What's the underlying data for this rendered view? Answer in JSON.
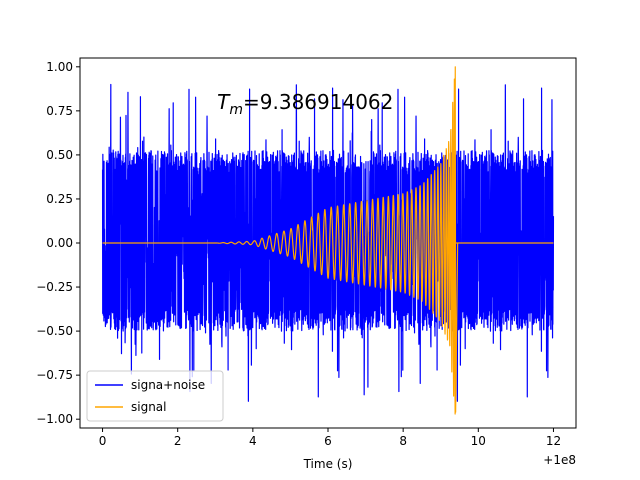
{
  "chart_data": {
    "type": "line",
    "title": "",
    "xlabel": "Time (s)",
    "ylabel": "",
    "x_offset_label": "+1e8",
    "xlim": [
      -0.6,
      12.6
    ],
    "ylim": [
      -1.05,
      1.05
    ],
    "x_ticks": [
      0,
      2,
      4,
      6,
      8,
      10,
      12
    ],
    "x_tick_labels": [
      "0",
      "2",
      "4",
      "6",
      "8",
      "10",
      "12"
    ],
    "y_ticks": [
      1.0,
      0.75,
      0.5,
      0.25,
      0.0,
      -0.25,
      -0.5,
      -0.75,
      -1.0
    ],
    "y_tick_labels": [
      "1.00",
      "0.75",
      "0.50",
      "0.25",
      "0.00",
      "−0.25",
      "−0.50",
      "−0.75",
      "−1.00"
    ],
    "annotation": {
      "prefix": "T",
      "subscript": "m",
      "value_text": "=9.386914062",
      "x": 3.05,
      "y": 0.8
    },
    "legend": {
      "placement": "lower-left"
    },
    "series": [
      {
        "name": "signa+noise",
        "color": "#0000ff",
        "x_range": [
          0,
          12
        ],
        "samples": 3000,
        "noise_envelope": 0.5,
        "noise_peak": 0.9
      },
      {
        "name": "signal",
        "color": "#ffa500",
        "x_range": [
          0,
          12
        ],
        "samples": 3000,
        "amplitude_points": [
          [
            0,
            0.0
          ],
          [
            3,
            0.0
          ],
          [
            4,
            0.01
          ],
          [
            5,
            0.08
          ],
          [
            6,
            0.2
          ],
          [
            7,
            0.24
          ],
          [
            8,
            0.28
          ],
          [
            8.5,
            0.33
          ],
          [
            9.0,
            0.45
          ],
          [
            9.25,
            0.6
          ],
          [
            9.386914062,
            1.0
          ]
        ],
        "peak": 1.0,
        "trough": -0.96,
        "merger_time": 9.386914062,
        "ringdown_end": 9.45
      }
    ]
  }
}
